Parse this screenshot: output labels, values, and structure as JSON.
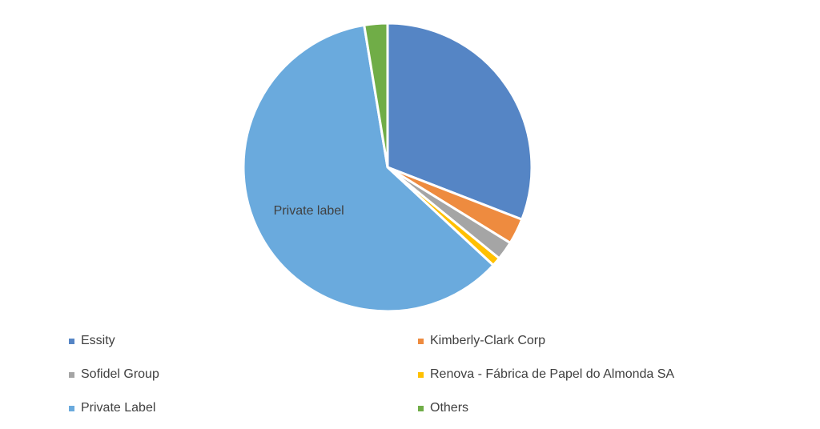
{
  "chart_data": {
    "type": "pie",
    "title": "",
    "start_angle_deg": 0,
    "direction": "clockwise",
    "slices": [
      {
        "label": "Essity",
        "value": 30.9,
        "color": "#5585C5"
      },
      {
        "label": "Kimberly-Clark Corp",
        "value": 2.9,
        "color": "#EE8B3F"
      },
      {
        "label": "Sofidel Group",
        "value": 2.1,
        "color": "#A5A5A5"
      },
      {
        "label": "Renova - Fábrica de Papel do Almonda SA",
        "value": 1.0,
        "color": "#FFC000"
      },
      {
        "label": "Private Label",
        "value": 60.5,
        "color": "#6AAADD"
      },
      {
        "label": "Others",
        "value": 2.6,
        "color": "#70AD47"
      }
    ],
    "data_labels": [
      {
        "slice": "Private Label",
        "text": "Private label"
      }
    ],
    "legend": {
      "placement": "bottom",
      "columns": 2
    }
  }
}
